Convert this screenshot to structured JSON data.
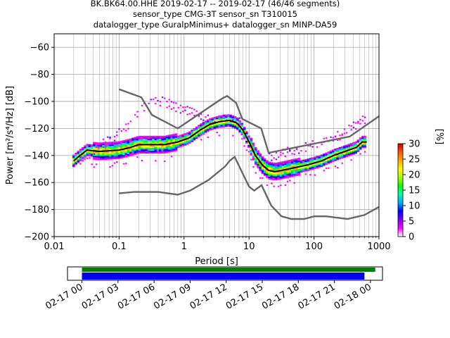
{
  "title_lines": [
    "BK.BK64.00.HHE   2019-02-17 -- 2019-02-17  (46/46 segments)",
    "sensor_type CMG-3T sensor_sn T310015",
    "datalogger_type GuralpMinimus+ datalogger_sn MINP-DA59"
  ],
  "chart_data": {
    "type": "heatmap",
    "xlabel": "Period [s]",
    "ylabel": "Power [m²/s⁴/Hz] [dB]",
    "xscale": "log",
    "xlim": [
      0.01,
      1000
    ],
    "ylim": [
      -200,
      -50
    ],
    "grid": true,
    "xticks": [
      {
        "v": 0.01,
        "label": "0.01"
      },
      {
        "v": 0.1,
        "label": "0.1"
      },
      {
        "v": 1,
        "label": "1"
      },
      {
        "v": 10,
        "label": "10"
      },
      {
        "v": 100,
        "label": "100"
      },
      {
        "v": 1000,
        "label": "1000"
      }
    ],
    "yticks": [
      {
        "v": -60,
        "label": "−60"
      },
      {
        "v": -80,
        "label": "−80"
      },
      {
        "v": -100,
        "label": "−100"
      },
      {
        "v": -120,
        "label": "−120"
      },
      {
        "v": -140,
        "label": "−140"
      },
      {
        "v": -160,
        "label": "−160"
      },
      {
        "v": -180,
        "label": "−180"
      },
      {
        "v": -200,
        "label": "−200"
      }
    ],
    "colorbar": {
      "label": "[%]",
      "range": [
        0,
        30
      ],
      "ticks": [
        {
          "v": 0,
          "label": "0"
        },
        {
          "v": 5,
          "label": "5"
        },
        {
          "v": 10,
          "label": "10"
        },
        {
          "v": 15,
          "label": "15"
        },
        {
          "v": 20,
          "label": "20"
        },
        {
          "v": 25,
          "label": "25"
        },
        {
          "v": 30,
          "label": "30"
        }
      ],
      "colors": [
        "#ffffff",
        "#ff00ff",
        "#8000ff",
        "#0000ff",
        "#00aaff",
        "#00ffaa",
        "#00ff00",
        "#aaff00",
        "#ffff00",
        "#ffaa00",
        "#ff5500",
        "#cc0000"
      ]
    },
    "model_curves": {
      "color": "#666666",
      "high": [
        [
          0.1,
          -91
        ],
        [
          0.22,
          -97
        ],
        [
          0.32,
          -110
        ],
        [
          0.8,
          -120
        ],
        [
          3.8,
          -98
        ],
        [
          4.6,
          -96
        ],
        [
          6.3,
          -101
        ],
        [
          7.9,
          -113
        ],
        [
          15.4,
          -120
        ],
        [
          20,
          -138
        ],
        [
          354.8,
          -126
        ],
        [
          1000,
          -111
        ]
      ],
      "low": [
        [
          0.1,
          -168
        ],
        [
          0.17,
          -167
        ],
        [
          0.4,
          -167
        ],
        [
          0.8,
          -169
        ],
        [
          1.24,
          -166
        ],
        [
          2.4,
          -158
        ],
        [
          4.3,
          -148
        ],
        [
          5,
          -144
        ],
        [
          6,
          -141
        ],
        [
          10,
          -163
        ],
        [
          12,
          -166
        ],
        [
          15.6,
          -162
        ],
        [
          21.9,
          -177
        ],
        [
          31.6,
          -185
        ],
        [
          45,
          -187
        ],
        [
          70,
          -187
        ],
        [
          101,
          -185
        ],
        [
          154,
          -185
        ],
        [
          328,
          -187
        ],
        [
          600,
          -184
        ],
        [
          1000,
          -178
        ]
      ]
    },
    "mode_curve": {
      "color": "#000000",
      "points": [
        [
          0.02,
          -144
        ],
        [
          0.025,
          -140
        ],
        [
          0.032,
          -136
        ],
        [
          0.05,
          -137
        ],
        [
          0.1,
          -136
        ],
        [
          0.15,
          -134
        ],
        [
          0.2,
          -132
        ],
        [
          0.3,
          -132
        ],
        [
          0.5,
          -132
        ],
        [
          0.8,
          -130
        ],
        [
          1.2,
          -127
        ],
        [
          1.8,
          -121
        ],
        [
          2.5,
          -117
        ],
        [
          3.5,
          -115
        ],
        [
          5,
          -114
        ],
        [
          6.5,
          -116
        ],
        [
          8,
          -121
        ],
        [
          10,
          -130
        ],
        [
          12.5,
          -140
        ],
        [
          16,
          -147
        ],
        [
          20,
          -151
        ],
        [
          25,
          -152
        ],
        [
          32,
          -151
        ],
        [
          50,
          -149
        ],
        [
          80,
          -147
        ],
        [
          130,
          -144
        ],
        [
          200,
          -140
        ],
        [
          300,
          -137
        ],
        [
          450,
          -134
        ],
        [
          550,
          -130
        ],
        [
          650,
          -130
        ]
      ]
    },
    "upper_spread": [
      [
        0.025,
        -142
      ],
      [
        0.05,
        -132
      ],
      [
        0.1,
        -122
      ],
      [
        0.15,
        -114
      ],
      [
        0.2,
        -106
      ],
      [
        0.3,
        -100
      ],
      [
        0.5,
        -99
      ],
      [
        0.7,
        -102
      ],
      [
        1,
        -105
      ],
      [
        1.5,
        -108
      ],
      [
        2,
        -111
      ],
      [
        3,
        -112
      ],
      [
        5,
        -112
      ],
      [
        8,
        -115
      ]
    ],
    "upper_spread_right": [
      [
        20,
        -140
      ],
      [
        40,
        -136
      ],
      [
        80,
        -132
      ],
      [
        150,
        -127
      ],
      [
        250,
        -124
      ],
      [
        400,
        -118
      ],
      [
        500,
        -113
      ],
      [
        650,
        -113
      ]
    ],
    "timeline": {
      "xticks": [
        {
          "h": 0,
          "label": "02-17 00"
        },
        {
          "h": 3,
          "label": "02-17 03"
        },
        {
          "h": 6,
          "label": "02-17 06"
        },
        {
          "h": 9,
          "label": "02-17 09"
        },
        {
          "h": 12,
          "label": "02-17 12"
        },
        {
          "h": 15,
          "label": "02-17 15"
        },
        {
          "h": 18,
          "label": "02-17 18"
        },
        {
          "h": 21,
          "label": "02-17 21"
        },
        {
          "h": 24,
          "label": "02-18 00"
        }
      ],
      "range_hours": [
        -1.2,
        25
      ],
      "data_bar": {
        "start_h": 0,
        "end_h": 24.4,
        "color": "#008000"
      },
      "psd_bar": {
        "start_h": 0,
        "end_h": 23.5,
        "color": "#0000ff"
      }
    }
  }
}
